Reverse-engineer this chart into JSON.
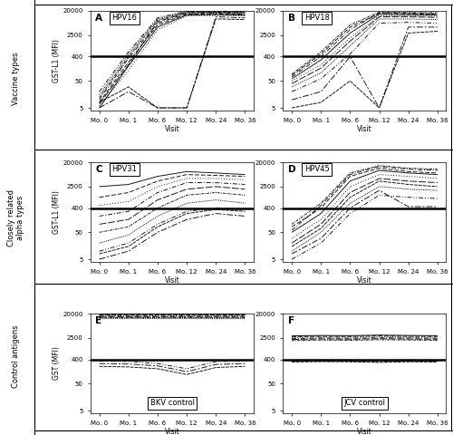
{
  "visits": [
    0,
    1,
    2,
    3,
    4,
    5
  ],
  "visit_labels": [
    "Mo. 0",
    "Mo. 1",
    "Mo. 6",
    "Mo. 12",
    "Mo. 24",
    "Mo. 36"
  ],
  "panels": [
    {
      "label": "A",
      "title": "HPV16",
      "ylabel": "GST-L1 (MFI)",
      "cutoff": 400,
      "ylim": [
        4,
        20000
      ],
      "yticks": [
        5,
        50,
        400,
        2500,
        20000
      ],
      "title_pos": "top",
      "data": [
        [
          5,
          180,
          5000,
          14000,
          14500,
          14000
        ],
        [
          8,
          250,
          6000,
          15000,
          15500,
          15000
        ],
        [
          6,
          120,
          4000,
          13000,
          13500,
          13000
        ],
        [
          10,
          350,
          7000,
          16000,
          16500,
          16000
        ],
        [
          7,
          200,
          8000,
          17000,
          17500,
          17000
        ],
        [
          12,
          400,
          9000,
          18000,
          18000,
          17500
        ],
        [
          15,
          500,
          10000,
          19000,
          19000,
          18500
        ],
        [
          20,
          600,
          11000,
          19500,
          19500,
          19000
        ],
        [
          5,
          20,
          5,
          5,
          12000,
          11000
        ],
        [
          8,
          30,
          5,
          5,
          10000,
          9500
        ]
      ]
    },
    {
      "label": "B",
      "title": "HPV18",
      "ylabel": "",
      "cutoff": 400,
      "ylim": [
        4,
        20000
      ],
      "yticks": [
        5,
        50,
        400,
        2500,
        20000
      ],
      "title_pos": "top",
      "data": [
        [
          60,
          300,
          3000,
          15000,
          14500,
          14000
        ],
        [
          80,
          500,
          5000,
          16000,
          15500,
          15000
        ],
        [
          50,
          200,
          2000,
          13000,
          13000,
          12500
        ],
        [
          70,
          400,
          4000,
          17000,
          16500,
          16000
        ],
        [
          40,
          150,
          1500,
          12000,
          12000,
          11500
        ],
        [
          90,
          600,
          6000,
          18000,
          17500,
          17000
        ],
        [
          30,
          100,
          1000,
          10000,
          10000,
          9500
        ],
        [
          20,
          60,
          500,
          7000,
          7500,
          7000
        ],
        [
          10,
          20,
          400,
          5,
          5000,
          5000
        ],
        [
          5,
          8,
          50,
          5,
          3000,
          3500
        ]
      ]
    },
    {
      "label": "C",
      "title": "HPV31",
      "ylabel": "GST-L1 (MFI)",
      "cutoff": 400,
      "ylim": [
        4,
        20000
      ],
      "yticks": [
        5,
        50,
        400,
        2500,
        20000
      ],
      "title_pos": "top",
      "data": [
        [
          2500,
          3000,
          6000,
          9000,
          8000,
          7000
        ],
        [
          1000,
          1500,
          4000,
          7000,
          6500,
          6000
        ],
        [
          500,
          700,
          2500,
          5000,
          5000,
          4500
        ],
        [
          200,
          300,
          1500,
          3500,
          3500,
          3000
        ],
        [
          100,
          150,
          800,
          2000,
          2500,
          2000
        ],
        [
          50,
          80,
          400,
          1200,
          1500,
          1200
        ],
        [
          20,
          40,
          200,
          600,
          800,
          600
        ],
        [
          10,
          20,
          100,
          300,
          400,
          350
        ],
        [
          5,
          10,
          50,
          150,
          250,
          200
        ],
        [
          8,
          15,
          80,
          250,
          350,
          300
        ]
      ]
    },
    {
      "label": "D",
      "title": "HPV45",
      "ylabel": "",
      "cutoff": 400,
      "ylim": [
        4,
        20000
      ],
      "yticks": [
        5,
        50,
        400,
        2500,
        20000
      ],
      "title_pos": "top",
      "data": [
        [
          50,
          250,
          4000,
          10000,
          8000,
          7000
        ],
        [
          80,
          400,
          6000,
          12000,
          9000,
          8000
        ],
        [
          30,
          150,
          2500,
          7000,
          6000,
          5000
        ],
        [
          60,
          500,
          7000,
          14000,
          11000,
          10000
        ],
        [
          20,
          100,
          1500,
          5000,
          4000,
          3500
        ],
        [
          100,
          600,
          8000,
          15000,
          12000,
          11000
        ],
        [
          10,
          50,
          600,
          2500,
          2000,
          1800
        ],
        [
          5,
          20,
          250,
          1200,
          1000,
          900
        ],
        [
          8,
          30,
          400,
          1800,
          450,
          450
        ],
        [
          15,
          70,
          1000,
          4000,
          3000,
          2500
        ]
      ]
    },
    {
      "label": "E",
      "title": "BKV control",
      "title_pos": "bottom",
      "ylabel": "GST (MFI)",
      "cutoff": 400,
      "ylim": [
        4,
        20000
      ],
      "yticks": [
        5,
        50,
        400,
        2500,
        20000
      ],
      "data": [
        [
          19000,
          19200,
          19100,
          19100,
          19000,
          19000
        ],
        [
          18000,
          18200,
          18100,
          18100,
          18000,
          18000
        ],
        [
          17000,
          17200,
          17100,
          17100,
          17000,
          17000
        ],
        [
          16000,
          16200,
          16100,
          16100,
          16000,
          16000
        ],
        [
          15000,
          15200,
          15100,
          15100,
          15000,
          15000
        ],
        [
          14000,
          14200,
          14100,
          14100,
          14000,
          14000
        ],
        [
          13000,
          13200,
          13100,
          13100,
          13000,
          13000
        ],
        [
          350,
          340,
          280,
          180,
          330,
          360
        ],
        [
          280,
          270,
          230,
          140,
          260,
          280
        ],
        [
          220,
          210,
          180,
          110,
          200,
          220
        ]
      ]
    },
    {
      "label": "F",
      "title": "JCV control",
      "title_pos": "bottom",
      "ylabel": "",
      "cutoff": 400,
      "ylim": [
        4,
        20000
      ],
      "yticks": [
        5,
        50,
        400,
        2500,
        20000
      ],
      "data": [
        [
          3000,
          3100,
          3050,
          3200,
          3100,
          3050
        ],
        [
          2800,
          2900,
          2850,
          3000,
          2900,
          2850
        ],
        [
          2600,
          2700,
          2650,
          2750,
          2700,
          2650
        ],
        [
          2400,
          2500,
          2450,
          2550,
          2500,
          2450
        ],
        [
          2200,
          2300,
          2250,
          2350,
          2300,
          2250
        ],
        [
          2000,
          2100,
          2050,
          2150,
          2100,
          2050
        ],
        [
          380,
          390,
          385,
          370,
          385,
          380
        ],
        [
          360,
          370,
          365,
          350,
          365,
          360
        ],
        [
          340,
          350,
          345,
          330,
          345,
          340
        ],
        [
          320,
          330,
          325,
          310,
          325,
          320
        ]
      ]
    }
  ],
  "row_labels": [
    "Vaccine types",
    "Closely related\nalpha types",
    "Control antigens"
  ],
  "cutoff_lw": 1.8,
  "line_lw": 0.7,
  "line_color": "black",
  "cutoff_color": "black",
  "background_color": "white"
}
